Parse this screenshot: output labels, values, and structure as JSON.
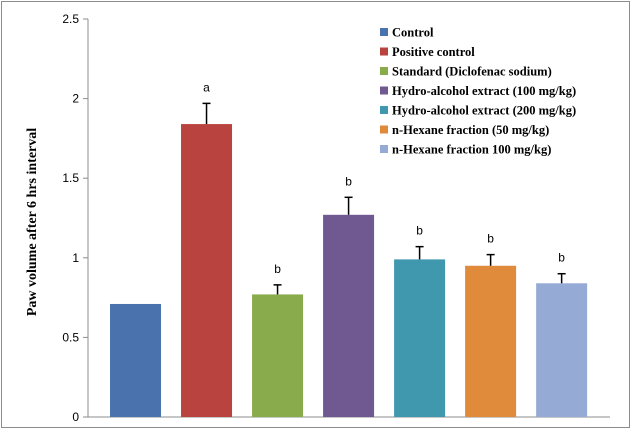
{
  "chart_data": {
    "type": "bar",
    "title": "",
    "xlabel": "",
    "ylabel": "Paw volume after 6 hrs interval",
    "ylim": [
      0,
      2.5
    ],
    "yticks": [
      "0",
      "0.5",
      "1",
      "1.5",
      "2",
      "2.5"
    ],
    "grid": false,
    "legend_position": "top-right",
    "series": [
      {
        "name": "Control",
        "value": 0.71,
        "error": null,
        "sig": "",
        "color": "#4a73ad"
      },
      {
        "name": "Positive control",
        "value": 1.84,
        "error": 0.13,
        "sig": "a",
        "color": "#b8433f"
      },
      {
        "name": "Standard (Diclofenac sodium)",
        "value": 0.77,
        "error": 0.06,
        "sig": "b",
        "color": "#8aab4c"
      },
      {
        "name": "Hydro-alcohol extract (100 mg/kg)",
        "value": 1.27,
        "error": 0.11,
        "sig": "b",
        "color": "#705890"
      },
      {
        "name": "Hydro-alcohol extract (200 mg/kg)",
        "value": 0.99,
        "error": 0.08,
        "sig": "b",
        "color": "#3f98ae"
      },
      {
        "name": "n-Hexane  fraction (50 mg/kg)",
        "value": 0.95,
        "error": 0.07,
        "sig": "b",
        "color": "#e08a3c"
      },
      {
        "name": "n-Hexane  fraction 100 mg/kg)",
        "value": 0.84,
        "error": 0.06,
        "sig": "b",
        "color": "#95abd5"
      }
    ]
  }
}
